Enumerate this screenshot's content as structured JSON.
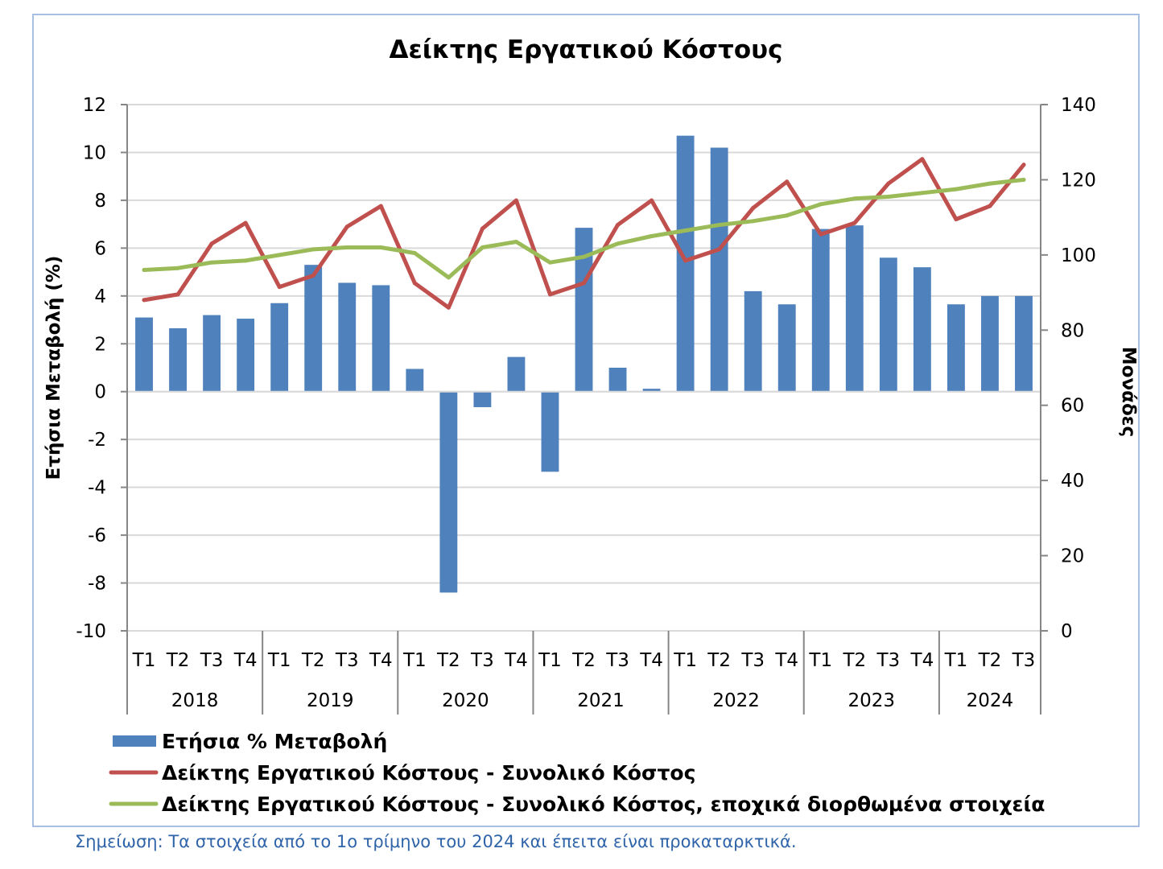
{
  "note": "Σημείωση: Τα στοιχεία από το 1ο τρίμηνο του 2024 και έπειτα είναι προκαταρκτικά.",
  "colors": {
    "bar": "#4f81bd",
    "total_line": "#c0504d",
    "seasonal_line": "#9bbb59",
    "grid": "#d9d9d9",
    "axis": "#868686",
    "frame": "#a7c0e2",
    "note": "#2f64a9"
  },
  "chart_data": {
    "type": "bar",
    "title": "Δείκτης Εργατικού Κόστους",
    "ylabel": "Ετήσια Μεταβολή (%)",
    "y2label": "Μονάδες",
    "ylim": [
      -10,
      12
    ],
    "yticks": [
      "12",
      "10",
      "8",
      "6",
      "4",
      "2",
      "0",
      "-2",
      "-4",
      "-6",
      "-8",
      "-10"
    ],
    "y2lim": [
      0,
      140
    ],
    "y2ticks": [
      "140",
      "120",
      "100",
      "80",
      "60",
      "40",
      "20",
      "0"
    ],
    "grid": true,
    "legend_position": "bottom",
    "categories": [
      "Τ1",
      "Τ2",
      "Τ3",
      "Τ4",
      "Τ1",
      "Τ2",
      "Τ3",
      "Τ4",
      "Τ1",
      "Τ2",
      "Τ3",
      "Τ4",
      "Τ1",
      "Τ2",
      "Τ3",
      "Τ4",
      "Τ1",
      "Τ2",
      "Τ3",
      "Τ4",
      "Τ1",
      "Τ2",
      "Τ3",
      "Τ4",
      "Τ1",
      "Τ2",
      "Τ3"
    ],
    "years": [
      {
        "label": "2018",
        "count": 4
      },
      {
        "label": "2019",
        "count": 4
      },
      {
        "label": "2020",
        "count": 4
      },
      {
        "label": "2021",
        "count": 4
      },
      {
        "label": "2022",
        "count": 4
      },
      {
        "label": "2023",
        "count": 4
      },
      {
        "label": "2024",
        "count": 3
      }
    ],
    "series": [
      {
        "name": "Ετήσια % Μεταβολή",
        "type": "bar",
        "axis": "left",
        "values": [
          3.1,
          2.65,
          3.2,
          3.05,
          3.7,
          5.3,
          4.55,
          4.45,
          0.95,
          -8.4,
          -0.65,
          1.45,
          -3.35,
          6.85,
          1.0,
          0.12,
          10.7,
          10.2,
          4.2,
          3.65,
          6.8,
          6.95,
          5.6,
          5.2,
          3.65,
          4.0,
          4.0
        ]
      },
      {
        "name": "Δείκτης Εργατικού Κόστους - Συνολικό Κόστος",
        "type": "line",
        "axis": "right",
        "values": [
          88,
          89.5,
          103,
          108.5,
          91.5,
          94.5,
          107.5,
          113,
          92.5,
          86,
          107,
          114.5,
          89.5,
          92.5,
          108,
          114.5,
          98.5,
          101.5,
          112.5,
          119.5,
          105.5,
          108.5,
          119,
          125.5,
          109.5,
          113,
          124
        ]
      },
      {
        "name": "Δείκτης Εργατικού Κόστους - Συνολικό Κόστος, εποχικά διορθωμένα στοιχεία",
        "type": "line",
        "axis": "right",
        "values": [
          96,
          96.5,
          98,
          98.5,
          100,
          101.5,
          102,
          102,
          100.5,
          94,
          102,
          103.5,
          98,
          99.5,
          103,
          105,
          106.5,
          108,
          109,
          110.5,
          113.5,
          115,
          115.5,
          116.5,
          117.5,
          119,
          120
        ]
      }
    ]
  }
}
